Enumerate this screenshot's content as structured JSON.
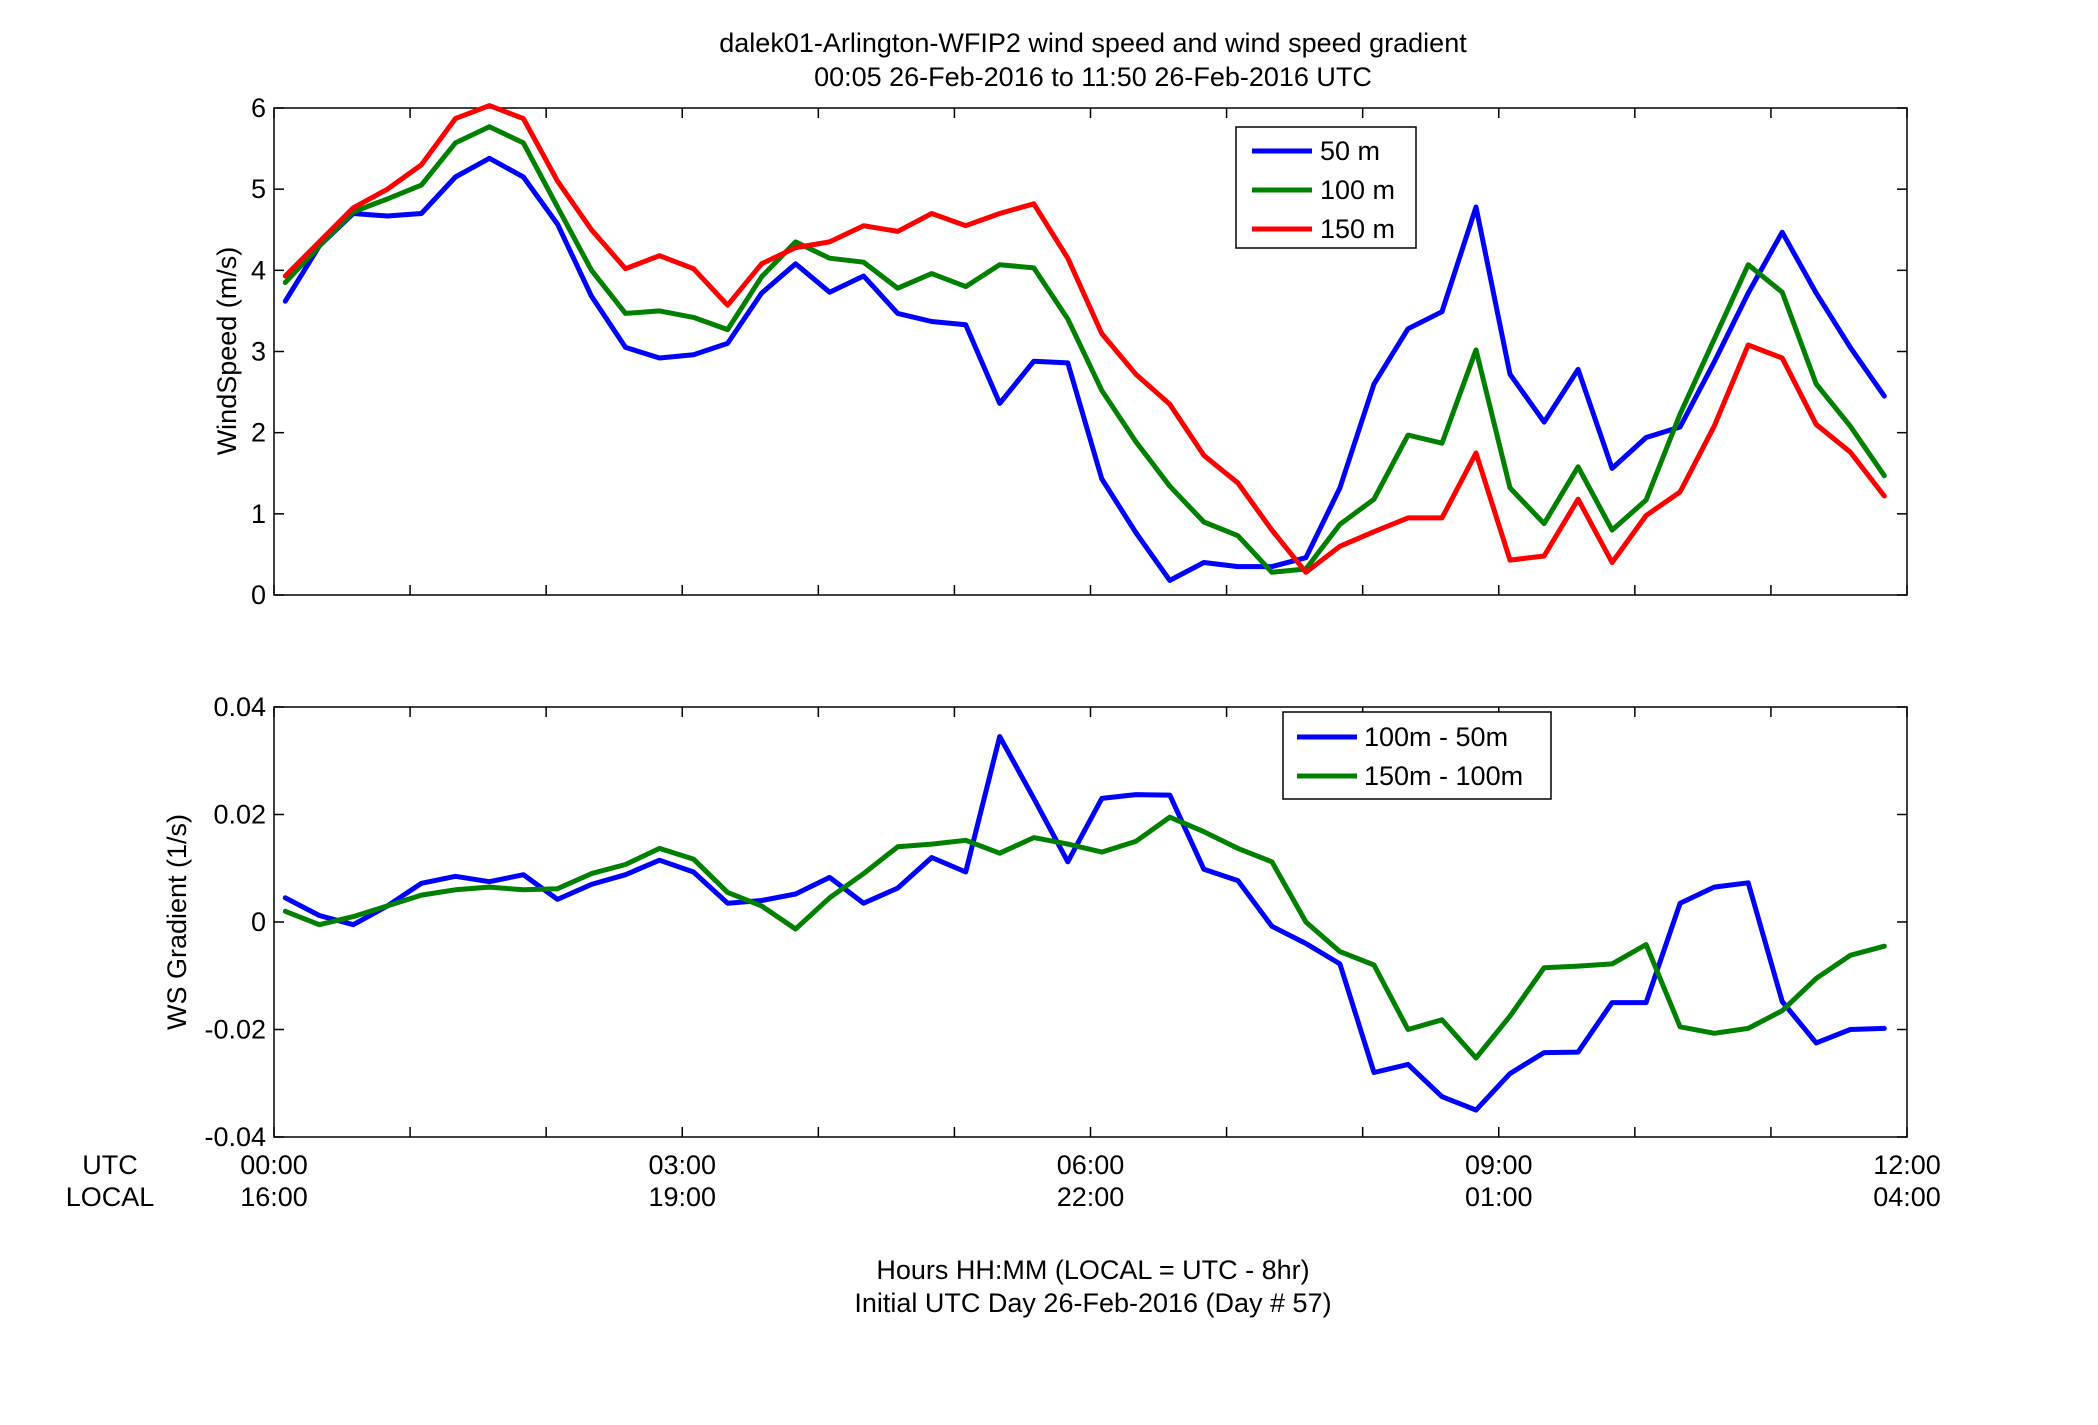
{
  "figure": {
    "title_line1": "dalek01-Arlington-WFIP2  wind speed and wind speed gradient",
    "title_line2": "00:05 26-Feb-2016 to 11:50 26-Feb-2016  UTC",
    "footer_line1": "Hours HH:MM  (LOCAL = UTC - 8hr)",
    "footer_line2": "Initial UTC Day 26-Feb-2016 (Day # 57)",
    "row_label_utc": "UTC",
    "row_label_local": "LOCAL"
  },
  "chart_data": [
    {
      "type": "line",
      "title": "",
      "xlabel": "",
      "ylabel": "WindSpeed (m/s)",
      "xlim": [
        0,
        12
      ],
      "ylim": [
        0,
        6
      ],
      "grid": false,
      "legend_position": "top-right",
      "x_ticks": [
        0,
        3,
        6,
        9,
        12
      ],
      "y_ticks": [
        0,
        1,
        2,
        3,
        4,
        5,
        6
      ],
      "y_tick_labels": [
        "0",
        "1",
        "2",
        "3",
        "4",
        "5",
        "6"
      ],
      "x_hours": [
        0.083,
        0.333,
        0.583,
        0.833,
        1.083,
        1.333,
        1.583,
        1.833,
        2.083,
        2.333,
        2.583,
        2.833,
        3.083,
        3.333,
        3.583,
        3.833,
        4.083,
        4.333,
        4.583,
        4.833,
        5.083,
        5.333,
        5.583,
        5.833,
        6.083,
        6.333,
        6.583,
        6.833,
        7.083,
        7.333,
        7.583,
        7.833,
        8.083,
        8.333,
        8.583,
        8.833,
        9.083,
        9.333,
        9.583,
        9.833,
        10.083,
        10.333,
        10.583,
        10.833,
        11.083,
        11.333,
        11.583,
        11.833
      ],
      "series": [
        {
          "name": "50 m",
          "color": "#0000ff",
          "values": [
            3.62,
            4.3,
            4.7,
            4.67,
            4.7,
            5.15,
            5.38,
            5.15,
            4.57,
            3.68,
            3.05,
            2.92,
            2.96,
            3.1,
            3.72,
            4.08,
            3.73,
            3.93,
            3.47,
            3.37,
            3.33,
            2.36,
            2.88,
            2.86,
            1.43,
            0.77,
            0.18,
            0.4,
            0.35,
            0.35,
            0.46,
            1.32,
            2.6,
            3.28,
            3.49,
            4.78,
            2.72,
            2.13,
            2.78,
            1.56,
            1.94,
            2.07,
            2.87,
            3.72,
            4.47,
            3.72,
            3.05,
            2.45
          ]
        },
        {
          "name": "100 m",
          "color": "#008000",
          "values": [
            3.85,
            4.3,
            4.72,
            4.88,
            5.05,
            5.57,
            5.77,
            5.57,
            4.78,
            4.0,
            3.47,
            3.5,
            3.42,
            3.27,
            3.92,
            4.35,
            4.15,
            4.1,
            3.78,
            3.96,
            3.8,
            4.07,
            4.03,
            3.4,
            2.52,
            1.89,
            1.34,
            0.9,
            0.73,
            0.28,
            0.32,
            0.87,
            1.18,
            1.97,
            1.87,
            3.02,
            1.32,
            0.88,
            1.58,
            0.8,
            1.17,
            2.23,
            3.15,
            4.07,
            3.73,
            2.6,
            2.08,
            1.47
          ]
        },
        {
          "name": "150 m",
          "color": "#ff0000",
          "values": [
            3.93,
            4.35,
            4.77,
            5.0,
            5.3,
            5.87,
            6.03,
            5.87,
            5.1,
            4.5,
            4.02,
            4.18,
            4.02,
            3.57,
            4.08,
            4.28,
            4.35,
            4.55,
            4.48,
            4.7,
            4.55,
            4.7,
            4.82,
            4.15,
            3.22,
            2.72,
            2.35,
            1.72,
            1.38,
            0.8,
            0.28,
            0.6,
            0.78,
            0.95,
            0.95,
            1.75,
            0.43,
            0.48,
            1.18,
            0.4,
            0.98,
            1.27,
            2.08,
            3.08,
            2.92,
            2.1,
            1.76,
            1.22
          ]
        }
      ]
    },
    {
      "type": "line",
      "title": "",
      "xlabel": "",
      "ylabel": "WS Gradient (1/s)",
      "xlim": [
        0,
        12
      ],
      "ylim": [
        -0.04,
        0.04
      ],
      "grid": false,
      "legend_position": "top-right",
      "x_ticks": [
        0,
        3,
        6,
        9,
        12
      ],
      "x_tick_labels_utc": [
        "00:00",
        "03:00",
        "06:00",
        "09:00",
        "12:00"
      ],
      "x_tick_labels_local": [
        "16:00",
        "19:00",
        "22:00",
        "01:00",
        "04:00"
      ],
      "y_ticks": [
        -0.04,
        -0.02,
        0,
        0.02,
        0.04
      ],
      "y_tick_labels": [
        "-0.04",
        "-0.02",
        "0",
        "0.02",
        "0.04"
      ],
      "x_hours": [
        0.083,
        0.333,
        0.583,
        0.833,
        1.083,
        1.333,
        1.583,
        1.833,
        2.083,
        2.333,
        2.583,
        2.833,
        3.083,
        3.333,
        3.583,
        3.833,
        4.083,
        4.333,
        4.583,
        4.833,
        5.083,
        5.333,
        5.583,
        5.833,
        6.083,
        6.333,
        6.583,
        6.833,
        7.083,
        7.333,
        7.583,
        7.833,
        8.083,
        8.333,
        8.583,
        8.833,
        9.083,
        9.333,
        9.583,
        9.833,
        10.083,
        10.333,
        10.583,
        10.833,
        11.083,
        11.333,
        11.583,
        11.833
      ],
      "series": [
        {
          "name": "100m - 50m",
          "color": "#0000ff",
          "values": [
            0.0045,
            0.0012,
            -0.0005,
            0.003,
            0.0072,
            0.0085,
            0.0075,
            0.0088,
            0.0042,
            0.007,
            0.0088,
            0.0115,
            0.0093,
            0.0035,
            0.004,
            0.0052,
            0.0083,
            0.0035,
            0.0063,
            0.012,
            0.0093,
            0.0345,
            0.023,
            0.0112,
            0.023,
            0.0237,
            0.0236,
            0.0098,
            0.0077,
            -0.0008,
            -0.004,
            -0.0078,
            -0.028,
            -0.0265,
            -0.0325,
            -0.035,
            -0.0282,
            -0.0243,
            -0.0242,
            -0.015,
            -0.015,
            0.0035,
            0.0065,
            0.0073,
            -0.0148,
            -0.0225,
            -0.02,
            -0.0198
          ]
        },
        {
          "name": "150m - 100m",
          "color": "#008000",
          "values": [
            0.002,
            -0.0005,
            0.001,
            0.003,
            0.005,
            0.006,
            0.0065,
            0.006,
            0.0062,
            0.009,
            0.0107,
            0.0137,
            0.0117,
            0.0055,
            0.003,
            -0.0013,
            0.0045,
            0.009,
            0.014,
            0.0145,
            0.0152,
            0.0128,
            0.0157,
            0.0145,
            0.013,
            0.015,
            0.0195,
            0.0168,
            0.0137,
            0.0112,
            0.0,
            -0.0055,
            -0.008,
            -0.02,
            -0.0182,
            -0.0253,
            -0.0175,
            -0.0085,
            -0.0082,
            -0.0078,
            -0.0042,
            -0.0195,
            -0.0207,
            -0.0198,
            -0.0165,
            -0.0105,
            -0.0062,
            -0.0045
          ]
        }
      ]
    }
  ]
}
